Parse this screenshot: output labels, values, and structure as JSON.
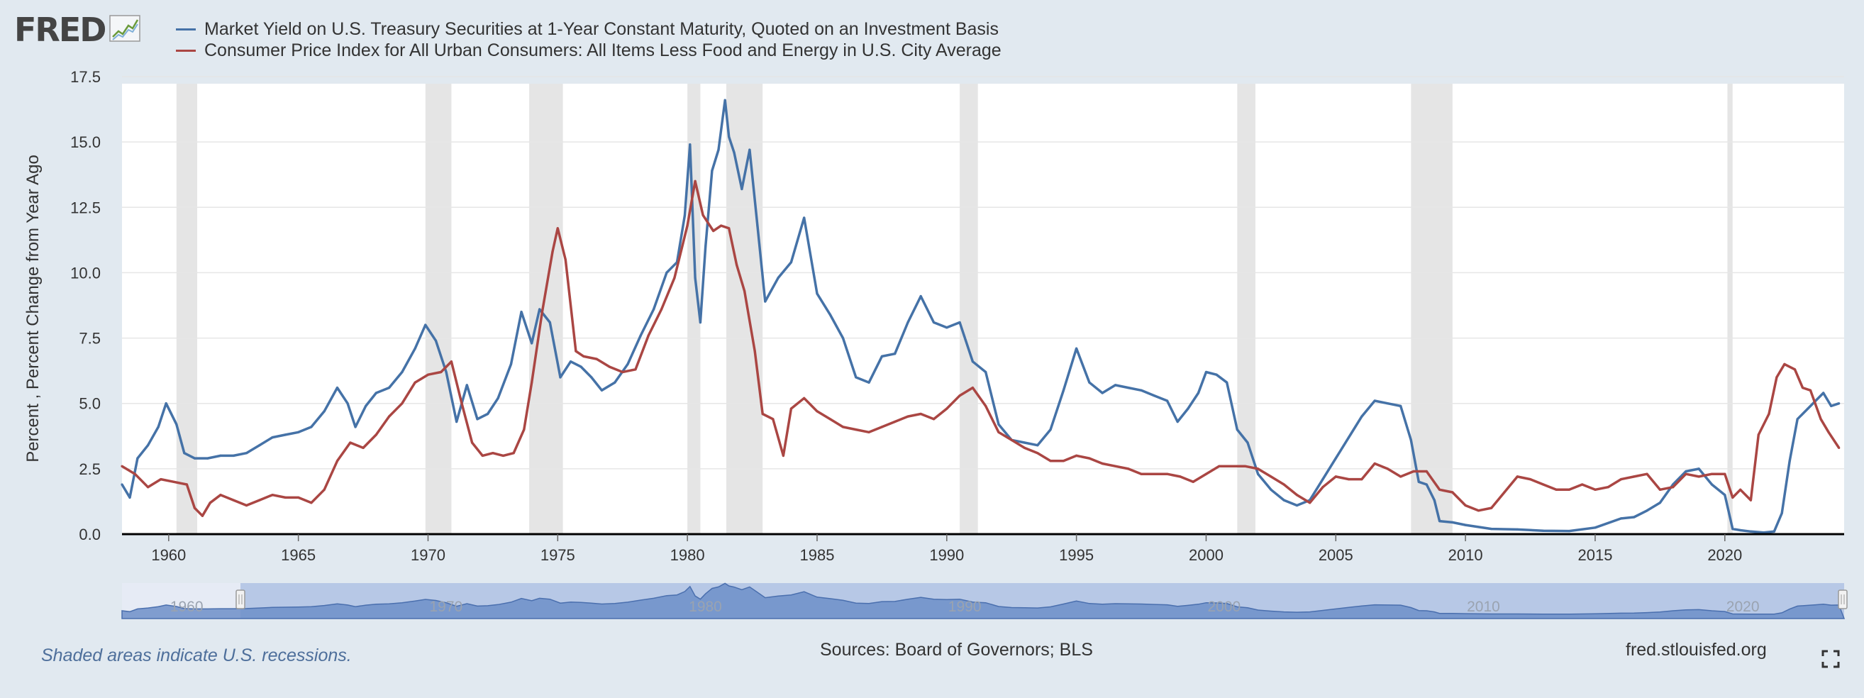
{
  "header": {
    "logo_text": "FRED",
    "logo_icon": "chart-line-icon"
  },
  "legend": [
    {
      "label": "Market Yield on U.S. Treasury Securities at 1-Year Constant Maturity, Quoted on an Investment Basis",
      "color": "#4572a7"
    },
    {
      "label": "Consumer Price Index for All Urban Consumers: All Items Less Food and Energy in U.S. City Average",
      "color": "#aa4643"
    }
  ],
  "footer": {
    "note": "Shaded areas indicate U.S. recessions.",
    "sources": "Sources: Board of Governors; BLS",
    "url": "fred.stlouisfed.org",
    "fullscreen_icon": "fullscreen-icon"
  },
  "navigator": {
    "labels": [
      "1960",
      "1970",
      "1980",
      "1990",
      "2000",
      "2010",
      "2020"
    ]
  },
  "chart_data": {
    "type": "line",
    "ylabel": "Percent , Percent Change from Year Ago",
    "ylim": [
      0,
      17.5
    ],
    "xlim": [
      1958.2,
      2024.6
    ],
    "y_ticks": [
      "0.0",
      "2.5",
      "5.0",
      "7.5",
      "10.0",
      "12.5",
      "15.0",
      "17.5"
    ],
    "x_ticks": [
      "1960",
      "1965",
      "1970",
      "1975",
      "1980",
      "1985",
      "1990",
      "1995",
      "2000",
      "2005",
      "2010",
      "2015",
      "2020"
    ],
    "grid": true,
    "legend_position": "top",
    "recessions": [
      [
        1960.3,
        1961.1
      ],
      [
        1969.9,
        1970.9
      ],
      [
        1973.9,
        1975.2
      ],
      [
        1980.0,
        1980.5
      ],
      [
        1981.5,
        1982.9
      ],
      [
        1990.5,
        1991.2
      ],
      [
        2001.2,
        2001.9
      ],
      [
        2007.9,
        2009.5
      ],
      [
        2020.1,
        2020.3
      ]
    ],
    "series": [
      {
        "name": "Market Yield on U.S. Treasury Securities at 1-Year Constant Maturity, Quoted on an Investment Basis",
        "color": "#4572a7",
        "x": [
          1958.2,
          1958.5,
          1958.8,
          1959.2,
          1959.6,
          1959.9,
          1960.3,
          1960.6,
          1961.0,
          1961.5,
          1962.0,
          1962.5,
          1963.0,
          1963.5,
          1964.0,
          1964.5,
          1965.0,
          1965.5,
          1966.0,
          1966.5,
          1966.9,
          1967.2,
          1967.6,
          1968.0,
          1968.5,
          1969.0,
          1969.5,
          1969.9,
          1970.3,
          1970.7,
          1971.1,
          1971.5,
          1971.9,
          1972.3,
          1972.7,
          1973.2,
          1973.6,
          1974.0,
          1974.3,
          1974.7,
          1975.1,
          1975.5,
          1975.9,
          1976.3,
          1976.7,
          1977.2,
          1977.7,
          1978.2,
          1978.7,
          1979.2,
          1979.6,
          1979.9,
          1980.1,
          1980.3,
          1980.5,
          1980.7,
          1980.95,
          1981.2,
          1981.45,
          1981.6,
          1981.8,
          1982.1,
          1982.4,
          1982.7,
          1983.0,
          1983.5,
          1984.0,
          1984.5,
          1985.0,
          1985.5,
          1986.0,
          1986.5,
          1987.0,
          1987.5,
          1988.0,
          1988.5,
          1989.0,
          1989.5,
          1990.0,
          1990.5,
          1991.0,
          1991.5,
          1992.0,
          1992.5,
          1993.0,
          1993.5,
          1994.0,
          1994.5,
          1995.0,
          1995.5,
          1996.0,
          1996.5,
          1997.0,
          1997.5,
          1998.0,
          1998.5,
          1998.9,
          1999.3,
          1999.7,
          2000.0,
          2000.4,
          2000.8,
          2001.2,
          2001.6,
          2002.0,
          2002.5,
          2003.0,
          2003.5,
          2004.0,
          2004.5,
          2005.0,
          2005.5,
          2006.0,
          2006.5,
          2007.0,
          2007.5,
          2007.9,
          2008.2,
          2008.5,
          2008.8,
          2009.0,
          2009.5,
          2010.0,
          2011.0,
          2012.0,
          2013.0,
          2014.0,
          2015.0,
          2016.0,
          2016.5,
          2017.0,
          2017.5,
          2018.0,
          2018.5,
          2019.0,
          2019.5,
          2020.0,
          2020.3,
          2020.6,
          2021.0,
          2021.5,
          2021.9,
          2022.2,
          2022.5,
          2022.8,
          2023.2,
          2023.5,
          2023.8,
          2024.1,
          2024.4
        ],
        "values": [
          1.9,
          1.4,
          2.9,
          3.4,
          4.1,
          5.0,
          4.2,
          3.1,
          2.9,
          2.9,
          3.0,
          3.0,
          3.1,
          3.4,
          3.7,
          3.8,
          3.9,
          4.1,
          4.7,
          5.6,
          5.0,
          4.1,
          4.9,
          5.4,
          5.6,
          6.2,
          7.1,
          8.0,
          7.4,
          6.2,
          4.3,
          5.7,
          4.4,
          4.6,
          5.2,
          6.5,
          8.5,
          7.3,
          8.6,
          8.1,
          6.0,
          6.6,
          6.4,
          6.0,
          5.5,
          5.8,
          6.5,
          7.6,
          8.6,
          10.0,
          10.4,
          12.2,
          14.9,
          9.8,
          8.1,
          11.0,
          13.9,
          14.7,
          16.6,
          15.2,
          14.6,
          13.2,
          14.7,
          11.8,
          8.9,
          9.8,
          10.4,
          12.1,
          9.2,
          8.4,
          7.5,
          6.0,
          5.8,
          6.8,
          6.9,
          8.1,
          9.1,
          8.1,
          7.9,
          8.1,
          6.6,
          6.2,
          4.2,
          3.6,
          3.5,
          3.4,
          4.0,
          5.5,
          7.1,
          5.8,
          5.4,
          5.7,
          5.6,
          5.5,
          5.3,
          5.1,
          4.3,
          4.8,
          5.4,
          6.2,
          6.1,
          5.8,
          4.0,
          3.5,
          2.3,
          1.7,
          1.3,
          1.1,
          1.3,
          2.1,
          2.9,
          3.7,
          4.5,
          5.1,
          5.0,
          4.9,
          3.6,
          2.0,
          1.9,
          1.3,
          0.5,
          0.45,
          0.35,
          0.2,
          0.18,
          0.13,
          0.12,
          0.25,
          0.6,
          0.65,
          0.9,
          1.2,
          1.9,
          2.4,
          2.5,
          1.9,
          1.5,
          0.2,
          0.15,
          0.1,
          0.06,
          0.1,
          0.8,
          2.8,
          4.4,
          4.8,
          5.1,
          5.4,
          4.9,
          5.0
        ]
      },
      {
        "name": "Consumer Price Index for All Urban Consumers: All Items Less Food and Energy in U.S. City Average",
        "color": "#aa4643",
        "x": [
          1958.2,
          1958.7,
          1959.2,
          1959.7,
          1960.2,
          1960.7,
          1961.0,
          1961.3,
          1961.6,
          1962.0,
          1962.5,
          1963.0,
          1963.5,
          1964.0,
          1964.5,
          1965.0,
          1965.5,
          1966.0,
          1966.5,
          1967.0,
          1967.5,
          1968.0,
          1968.5,
          1969.0,
          1969.5,
          1970.0,
          1970.5,
          1970.9,
          1971.3,
          1971.7,
          1972.1,
          1972.5,
          1972.9,
          1973.3,
          1973.7,
          1974.0,
          1974.4,
          1974.8,
          1975.0,
          1975.3,
          1975.7,
          1976.0,
          1976.5,
          1977.0,
          1977.5,
          1978.0,
          1978.5,
          1979.0,
          1979.5,
          1980.0,
          1980.3,
          1980.6,
          1981.0,
          1981.3,
          1981.6,
          1981.9,
          1982.2,
          1982.6,
          1982.9,
          1983.3,
          1983.7,
          1984.0,
          1984.5,
          1985.0,
          1985.5,
          1986.0,
          1986.5,
          1987.0,
          1987.5,
          1988.0,
          1988.5,
          1989.0,
          1989.5,
          1990.0,
          1990.5,
          1991.0,
          1991.5,
          1992.0,
          1992.5,
          1993.0,
          1993.5,
          1994.0,
          1994.5,
          1995.0,
          1995.5,
          1996.0,
          1996.5,
          1997.0,
          1997.5,
          1998.0,
          1998.5,
          1999.0,
          1999.5,
          2000.0,
          2000.5,
          2001.0,
          2001.5,
          2002.0,
          2002.5,
          2003.0,
          2003.5,
          2004.0,
          2004.5,
          2005.0,
          2005.5,
          2006.0,
          2006.5,
          2007.0,
          2007.5,
          2008.0,
          2008.5,
          2009.0,
          2009.5,
          2010.0,
          2010.5,
          2011.0,
          2011.5,
          2012.0,
          2012.5,
          2013.0,
          2013.5,
          2014.0,
          2014.5,
          2015.0,
          2015.5,
          2016.0,
          2016.5,
          2017.0,
          2017.5,
          2018.0,
          2018.5,
          2019.0,
          2019.5,
          2020.0,
          2020.3,
          2020.6,
          2021.0,
          2021.3,
          2021.7,
          2022.0,
          2022.3,
          2022.7,
          2023.0,
          2023.3,
          2023.7,
          2024.0,
          2024.4
        ],
        "values": [
          2.6,
          2.3,
          1.8,
          2.1,
          2.0,
          1.9,
          1.0,
          0.7,
          1.2,
          1.5,
          1.3,
          1.1,
          1.3,
          1.5,
          1.4,
          1.4,
          1.2,
          1.7,
          2.8,
          3.5,
          3.3,
          3.8,
          4.5,
          5.0,
          5.8,
          6.1,
          6.2,
          6.6,
          5.0,
          3.5,
          3.0,
          3.1,
          3.0,
          3.1,
          4.0,
          5.8,
          8.5,
          10.8,
          11.7,
          10.5,
          7.0,
          6.8,
          6.7,
          6.4,
          6.2,
          6.3,
          7.6,
          8.6,
          9.8,
          11.8,
          13.5,
          12.2,
          11.6,
          11.8,
          11.7,
          10.3,
          9.3,
          7.0,
          4.6,
          4.4,
          3.0,
          4.8,
          5.2,
          4.7,
          4.4,
          4.1,
          4.0,
          3.9,
          4.1,
          4.3,
          4.5,
          4.6,
          4.4,
          4.8,
          5.3,
          5.6,
          4.9,
          3.9,
          3.6,
          3.3,
          3.1,
          2.8,
          2.8,
          3.0,
          2.9,
          2.7,
          2.6,
          2.5,
          2.3,
          2.3,
          2.3,
          2.2,
          2.0,
          2.3,
          2.6,
          2.6,
          2.6,
          2.5,
          2.2,
          1.9,
          1.5,
          1.2,
          1.8,
          2.2,
          2.1,
          2.1,
          2.7,
          2.5,
          2.2,
          2.4,
          2.4,
          1.7,
          1.6,
          1.1,
          0.9,
          1.0,
          1.6,
          2.2,
          2.1,
          1.9,
          1.7,
          1.7,
          1.9,
          1.7,
          1.8,
          2.1,
          2.2,
          2.3,
          1.7,
          1.8,
          2.3,
          2.2,
          2.3,
          2.3,
          1.4,
          1.7,
          1.3,
          3.8,
          4.6,
          6.0,
          6.5,
          6.3,
          5.6,
          5.5,
          4.4,
          3.9,
          3.3
        ]
      }
    ]
  }
}
